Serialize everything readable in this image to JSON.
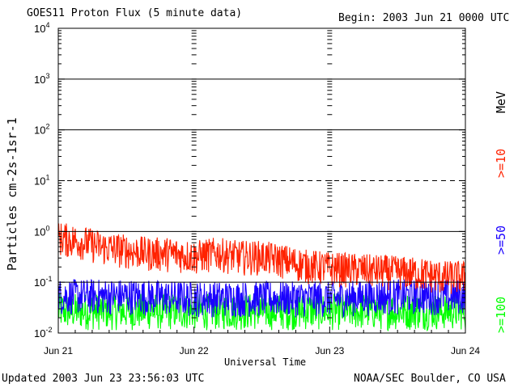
{
  "header": {
    "title": "GOES11 Proton Flux (5 minute data)",
    "begin": "Begin: 2003 Jun 21 0000 UTC"
  },
  "footer": {
    "updated": "Updated 2003 Jun 23 23:56:03 UTC",
    "credit": "NOAA/SEC Boulder, CO USA"
  },
  "chart_data": {
    "type": "line",
    "title": "GOES11 Proton Flux (5 minute data)",
    "xlabel": "Universal Time",
    "ylabel": "Particles cm-2s-1sr-1",
    "ylog": true,
    "ylim": [
      0.01,
      10000
    ],
    "xlim": [
      "2003-06-21",
      "2003-06-24"
    ],
    "x_ticks": [
      "Jun 21",
      "Jun 22",
      "Jun 23",
      "Jun 24"
    ],
    "y_ticks": [
      "10-2",
      "10-1",
      "100",
      "101",
      "102",
      "103",
      "104"
    ],
    "right_label": "MeV",
    "reference_levels": [
      {
        "value": 0.1,
        "style": "solid"
      },
      {
        "value": 1,
        "style": "solid"
      },
      {
        "value": 10,
        "style": "dashed"
      },
      {
        "value": 100,
        "style": "solid"
      },
      {
        "value": 1000,
        "style": "solid"
      }
    ],
    "series": [
      {
        "name": ">=10",
        "color": "#ff2200",
        "x": [
          "Jun 21 00:00",
          "Jun 21 04:00",
          "Jun 21 08:00",
          "Jun 21 12:00",
          "Jun 21 16:00",
          "Jun 21 20:00",
          "Jun 22 00:00",
          "Jun 22 04:00",
          "Jun 22 08:00",
          "Jun 22 12:00",
          "Jun 22 16:00",
          "Jun 22 20:00",
          "Jun 23 00:00",
          "Jun 23 04:00",
          "Jun 23 08:00",
          "Jun 23 12:00",
          "Jun 23 16:00",
          "Jun 23 20:00",
          "Jun 23 24:00"
        ],
        "values": [
          0.7,
          0.6,
          0.45,
          0.4,
          0.35,
          0.35,
          0.3,
          0.35,
          0.3,
          0.3,
          0.25,
          0.2,
          0.18,
          0.17,
          0.16,
          0.15,
          0.14,
          0.12,
          0.12
        ]
      },
      {
        "name": ">=50",
        "color": "#1a00ff",
        "x": [
          "Jun 21 00:00",
          "Jun 21 12:00",
          "Jun 22 00:00",
          "Jun 22 12:00",
          "Jun 23 00:00",
          "Jun 23 12:00",
          "Jun 23 24:00"
        ],
        "values": [
          0.05,
          0.05,
          0.045,
          0.045,
          0.045,
          0.05,
          0.05
        ]
      },
      {
        "name": ">=100",
        "color": "#00ff00",
        "x": [
          "Jun 21 00:00",
          "Jun 21 12:00",
          "Jun 22 00:00",
          "Jun 22 12:00",
          "Jun 23 00:00",
          "Jun 23 12:00",
          "Jun 23 24:00"
        ],
        "values": [
          0.025,
          0.025,
          0.025,
          0.025,
          0.025,
          0.025,
          0.025
        ]
      }
    ]
  }
}
